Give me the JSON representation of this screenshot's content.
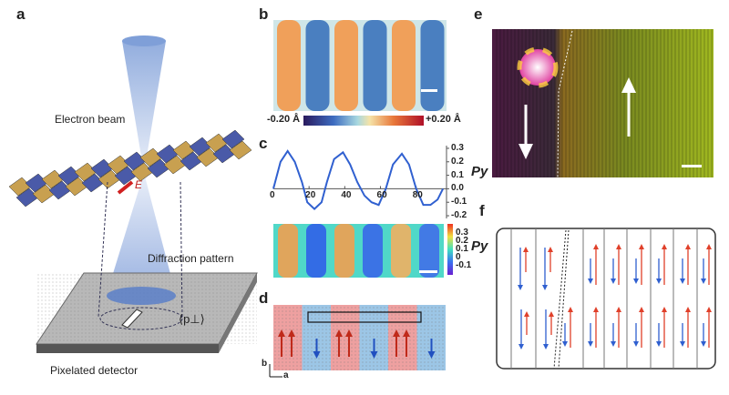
{
  "panels": {
    "a": {
      "label": "a",
      "beam": "Electron beam",
      "diffraction": "Diffraction pattern",
      "detector": "Pixelated detector",
      "polarization": "⟨p⊥⟩",
      "field": "E"
    },
    "b": {
      "label": "b",
      "cbar_min": "-0.20 Å",
      "cbar_max": "+0.20 Å"
    },
    "c": {
      "label": "c",
      "ylabel": "Py",
      "map_cbar_ticks": [
        "0.3",
        "0.2",
        "0.1",
        "0",
        "-0.1"
      ],
      "map_cbar_label": "Py"
    },
    "d": {
      "label": "d",
      "axis_b": "b",
      "axis_a": "a"
    },
    "e": {
      "label": "e"
    },
    "f": {
      "label": "f"
    }
  },
  "colors": {
    "orange": "#f0a05a",
    "blue": "#4a7fc0",
    "arrow_red": "#e0402a",
    "arrow_blue": "#2f5fd0",
    "plot_line": "#3060d0"
  },
  "chart_data": {
    "type": "line",
    "title": "",
    "xlabel": "",
    "ylabel": "Py",
    "xlim": [
      0,
      97
    ],
    "ylim": [
      -0.22,
      0.32
    ],
    "xticks": [
      "0",
      "20",
      "40",
      "60",
      "80"
    ],
    "yticks": [
      "0.3",
      "0.2",
      "0.1",
      "0.0",
      "-0.1",
      "-0.2"
    ],
    "x": [
      0,
      4,
      8,
      12,
      16,
      19,
      23,
      27,
      30,
      34,
      39,
      43,
      47,
      51,
      55,
      59,
      63,
      67,
      72,
      76,
      80,
      84,
      88,
      92,
      95
    ],
    "y": [
      0,
      0.2,
      0.28,
      0.2,
      0.05,
      -0.1,
      -0.15,
      -0.1,
      0.05,
      0.22,
      0.27,
      0.18,
      0.05,
      -0.05,
      -0.1,
      -0.12,
      0.0,
      0.18,
      0.26,
      0.18,
      0.0,
      -0.12,
      -0.12,
      -0.08,
      0.0
    ]
  }
}
